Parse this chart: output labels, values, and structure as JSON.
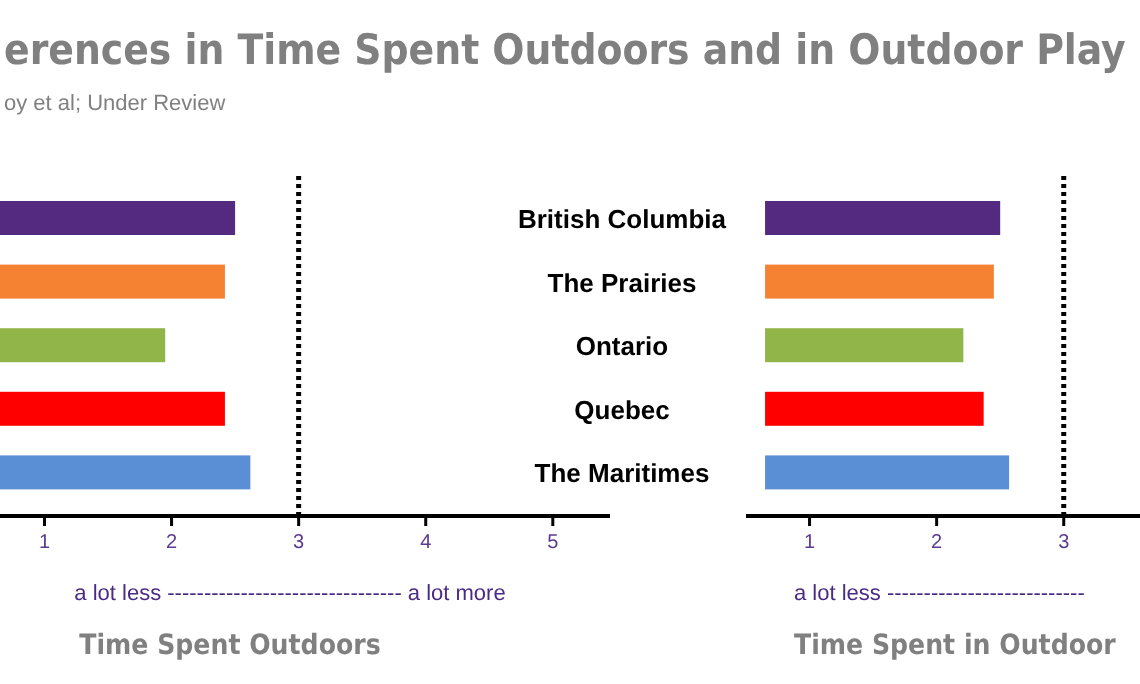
{
  "chart_data": [
    {
      "type": "bar",
      "orientation": "horizontal",
      "title": "erences in Time Spent Outdoors and in Outdoor Play",
      "subtitle": "oy et al; Under Review",
      "categories": [
        null,
        null,
        null,
        null,
        null
      ],
      "colors": [
        "#532a7f",
        "#f58232",
        "#92b54a",
        "#ff0000",
        "#5a8fd6"
      ],
      "base": [
        0.65,
        0.65,
        0.65,
        0.65,
        0.65
      ],
      "values": [
        1.85,
        1.77,
        1.3,
        1.77,
        1.97
      ],
      "xlim": [
        0.65,
        5.45
      ],
      "xticks": [
        1,
        2,
        3,
        4,
        5
      ],
      "ref_lines": [
        {
          "axis": "x",
          "value": 3,
          "line_style": "dotted"
        }
      ],
      "annotations": [
        "a lot less -------------------------------- a lot more"
      ],
      "xlabel": "Time Spent Outdoors"
    },
    {
      "type": "bar",
      "orientation": "horizontal",
      "categories": [
        "British Columbia",
        "The Prairies",
        "Ontario",
        "Quebec",
        "The Maritimes"
      ],
      "colors": [
        "#532a7f",
        "#f58232",
        "#92b54a",
        "#ff0000",
        "#5a8fd6"
      ],
      "base": [
        0.65,
        0.65,
        0.65,
        0.65,
        0.65
      ],
      "values": [
        1.85,
        1.8,
        1.56,
        1.72,
        1.92
      ],
      "xlim": [
        0.5,
        3.6
      ],
      "xticks": [
        1,
        2,
        3
      ],
      "ref_lines": [
        {
          "axis": "x",
          "value": 3,
          "line_style": "dotted"
        }
      ],
      "annotations": [
        "a lot less ---------------------------"
      ],
      "xlabel": "Time Spent in Outdoor"
    }
  ]
}
